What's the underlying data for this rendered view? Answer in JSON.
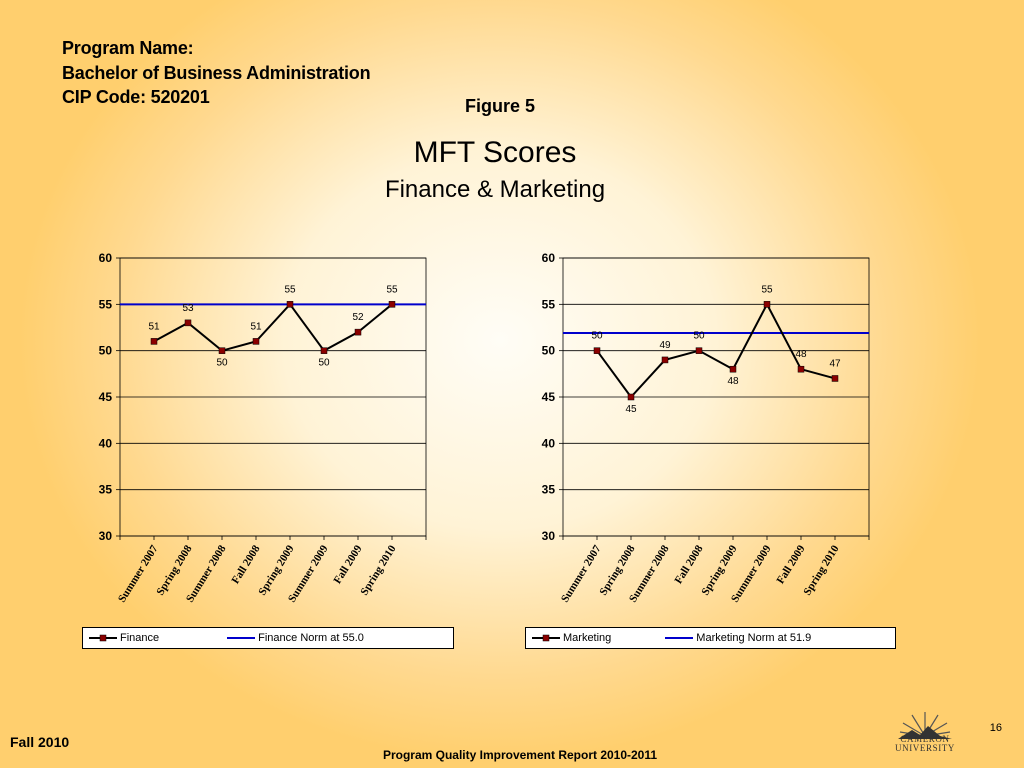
{
  "header": {
    "line1": "Program Name:",
    "line2": "Bachelor of Business Administration",
    "line3": "CIP Code: 520201"
  },
  "figure_label": "Figure 5",
  "title": "MFT Scores",
  "subtitle": "Finance & Marketing",
  "footer": {
    "term": "Fall 2010",
    "report": "Program Quality Improvement Report 2010-2011",
    "page": "16",
    "logo_text_1": "CAMERON",
    "logo_text_2": "UNIVERSITY"
  },
  "colors": {
    "series": "#000000",
    "marker": "#8b0000",
    "norm": "#0000cc"
  },
  "chart_data": [
    {
      "type": "line",
      "title": "",
      "xlabel": "",
      "ylabel": "",
      "ylim": [
        30,
        60
      ],
      "yticks": [
        30,
        35,
        40,
        45,
        50,
        55,
        60
      ],
      "grid": true,
      "legend": "bottom",
      "categories": [
        "Summer 2007",
        "Spring 2008",
        "Summer 2008",
        "Fall 2008",
        "Spring 2009",
        "Summer 2009",
        "Fall 2009",
        "Spring 2010"
      ],
      "series": [
        {
          "name": "Finance",
          "values": [
            51,
            53,
            50,
            51,
            55,
            50,
            52,
            55
          ]
        },
        {
          "name": "Finance Norm at 55.0",
          "values": [
            55.0,
            55.0,
            55.0,
            55.0,
            55.0,
            55.0,
            55.0,
            55.0
          ],
          "style": "reference-line"
        }
      ]
    },
    {
      "type": "line",
      "title": "",
      "xlabel": "",
      "ylabel": "",
      "ylim": [
        30,
        60
      ],
      "yticks": [
        30,
        35,
        40,
        45,
        50,
        55,
        60
      ],
      "grid": true,
      "legend": "bottom",
      "categories": [
        "Summer 2007",
        "Spring 2008",
        "Summer 2008",
        "Fall 2008",
        "Spring 2009",
        "Summer 2009",
        "Fall 2009",
        "Spring 2010"
      ],
      "series": [
        {
          "name": "Marketing",
          "values": [
            50,
            45,
            49,
            50,
            48,
            55,
            48,
            47
          ]
        },
        {
          "name": "Marketing Norm at 51.9",
          "values": [
            51.9,
            51.9,
            51.9,
            51.9,
            51.9,
            51.9,
            51.9,
            51.9
          ],
          "style": "reference-line"
        }
      ]
    }
  ]
}
